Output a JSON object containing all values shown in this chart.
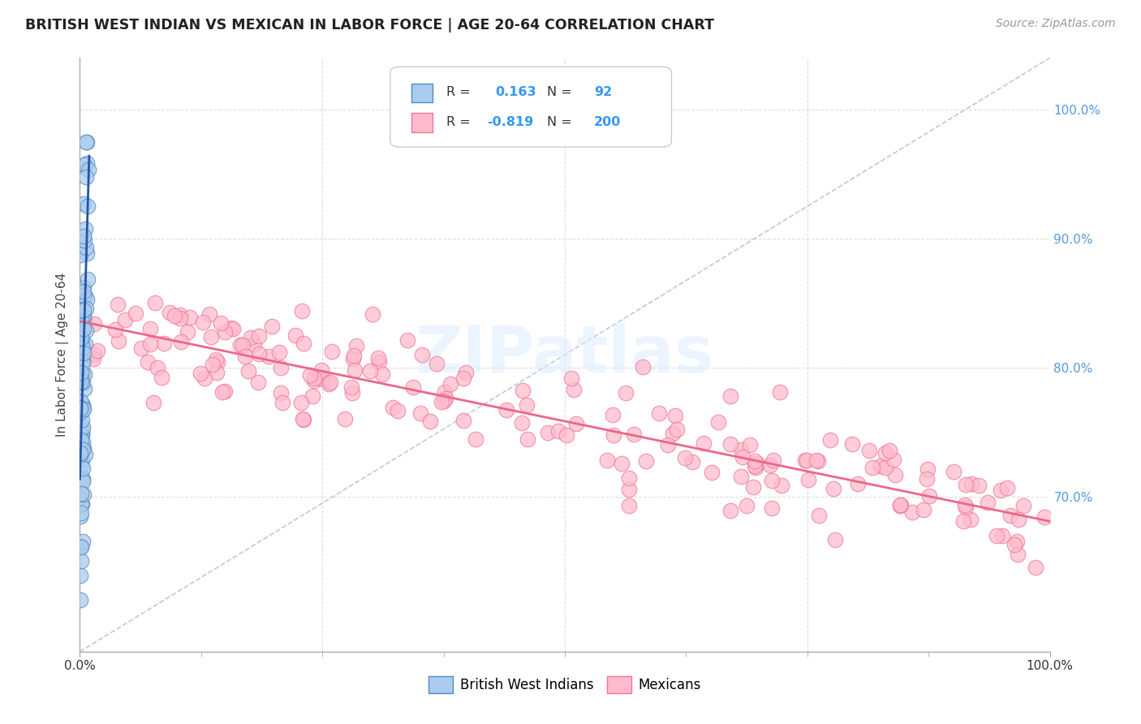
{
  "title": "BRITISH WEST INDIAN VS MEXICAN IN LABOR FORCE | AGE 20-64 CORRELATION CHART",
  "source": "Source: ZipAtlas.com",
  "ylabel": "In Labor Force | Age 20-64",
  "xlim": [
    0.0,
    1.0
  ],
  "ylim": [
    0.58,
    1.04
  ],
  "ytick_positions": [
    0.7,
    0.8,
    0.9,
    1.0
  ],
  "ytick_labels": [
    "70.0%",
    "80.0%",
    "90.0%",
    "100.0%"
  ],
  "R_blue": 0.163,
  "N_blue": 92,
  "R_pink": -0.819,
  "N_pink": 200,
  "blue_face_color": "#AACCEE",
  "blue_edge_color": "#5588BB",
  "pink_face_color": "#FFBBCC",
  "pink_edge_color": "#EE7799",
  "blue_line_color": "#2255AA",
  "pink_line_color": "#EE6688",
  "diag_line_color": "#AABBDD",
  "watermark_color": "#DDEEFF",
  "grid_color": "#DDDDDD",
  "background_color": "#FFFFFF",
  "title_color": "#222222",
  "source_color": "#999999",
  "ylabel_color": "#444444",
  "ytick_color": "#5599DD",
  "xtick_color": "#333333"
}
